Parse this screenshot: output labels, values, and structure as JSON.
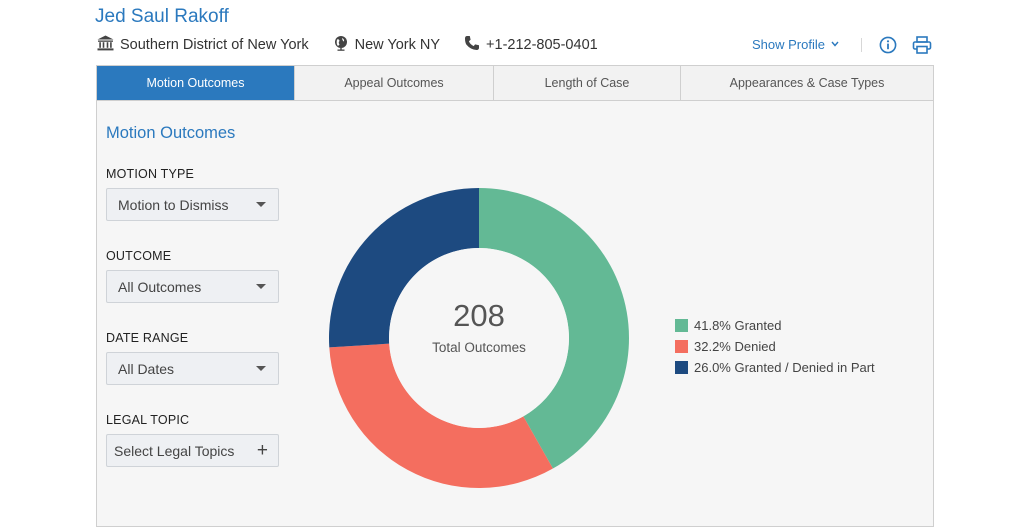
{
  "header": {
    "judge_name": "Jed Saul Rakoff",
    "court": "Southern District of New York",
    "location": "New York NY",
    "phone": "+1-212-805-0401",
    "show_profile": "Show Profile",
    "icons": [
      "courthouse-icon",
      "globe-icon",
      "phone-icon",
      "chevron-down-icon",
      "info-icon",
      "print-icon"
    ]
  },
  "tabs": [
    {
      "label": "Motion Outcomes",
      "active": true
    },
    {
      "label": "Appeal Outcomes",
      "active": false
    },
    {
      "label": "Length of Case",
      "active": false
    },
    {
      "label": "Appearances & Case Types",
      "active": false
    }
  ],
  "section_title": "Motion Outcomes",
  "filters": {
    "motion_type": {
      "label": "MOTION TYPE",
      "value": "Motion to Dismiss"
    },
    "outcome": {
      "label": "OUTCOME",
      "value": "All Outcomes"
    },
    "date_range": {
      "label": "DATE RANGE",
      "value": "All Dates"
    },
    "legal_topic": {
      "label": "LEGAL TOPIC",
      "placeholder": "Select Legal Topics"
    }
  },
  "chart_data": {
    "type": "pie",
    "donut": true,
    "center_value": "208",
    "center_label": "Total Outcomes",
    "slices": [
      {
        "label": "41.8% Granted",
        "value": 41.8,
        "color": "#63b995"
      },
      {
        "label": "32.2% Denied",
        "value": 32.2,
        "color": "#f46e5f"
      },
      {
        "label": "26.0% Granted / Denied in Part",
        "value": 26.0,
        "color": "#1d4a80"
      }
    ],
    "legend_position": "right"
  },
  "colors": {
    "accent": "#2b79be"
  }
}
